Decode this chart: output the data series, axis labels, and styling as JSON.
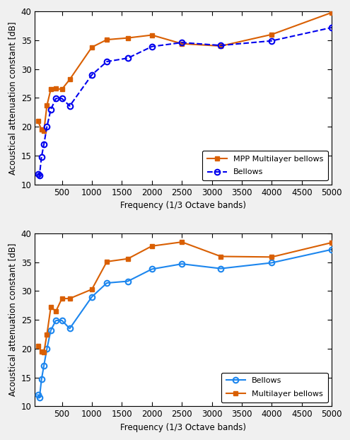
{
  "top": {
    "xlabel": "Frequency (1/3 Octave bands)",
    "ylabel": "Acoustical attenuation constant [dB]",
    "ylim": [
      10,
      40
    ],
    "xlim": [
      50,
      5000
    ],
    "xticks": [
      500,
      1000,
      1500,
      2000,
      2500,
      3000,
      3500,
      4000,
      4500,
      5000
    ],
    "yticks": [
      10,
      15,
      20,
      25,
      30,
      35,
      40
    ],
    "mpp_x": [
      100,
      160,
      200,
      250,
      315,
      400,
      500,
      630,
      1000,
      1250,
      1600,
      2000,
      2500,
      3150,
      4000,
      5000
    ],
    "mpp_y": [
      21.0,
      19.5,
      19.3,
      23.7,
      26.5,
      26.6,
      26.5,
      28.2,
      33.8,
      35.1,
      35.4,
      35.9,
      34.4,
      34.0,
      36.0,
      39.8
    ],
    "bellows_x": [
      100,
      125,
      160,
      200,
      250,
      315,
      400,
      500,
      630,
      1000,
      1250,
      1600,
      2000,
      2500,
      3150,
      4000,
      5000
    ],
    "bellows_y": [
      11.8,
      11.5,
      14.8,
      17.0,
      20.0,
      23.0,
      24.9,
      24.9,
      23.6,
      29.0,
      31.3,
      31.9,
      33.9,
      34.6,
      34.1,
      34.9,
      37.2
    ],
    "mpp_color": "#d95f02",
    "bellows_color": "#0000ee",
    "mpp_label": "MPP Multilayer bellows",
    "bellows_label": "Bellows"
  },
  "bottom": {
    "xlabel": "Frequency (1/3 Octave bands)",
    "ylabel": "Acoustical attenuation constant [dB]",
    "ylim": [
      10,
      40
    ],
    "xlim": [
      50,
      5000
    ],
    "xticks": [
      500,
      1000,
      1500,
      2000,
      2500,
      3000,
      3500,
      4000,
      4500,
      5000
    ],
    "yticks": [
      10,
      15,
      20,
      25,
      30,
      35,
      40
    ],
    "multilayer_x": [
      100,
      160,
      200,
      250,
      315,
      400,
      500,
      630,
      1000,
      1250,
      1600,
      2000,
      2500,
      3150,
      4000,
      5000
    ],
    "multilayer_y": [
      20.5,
      19.5,
      19.4,
      22.5,
      27.2,
      26.5,
      28.7,
      28.7,
      30.3,
      35.1,
      35.6,
      37.8,
      38.5,
      36.0,
      35.9,
      38.4
    ],
    "bellows_x": [
      100,
      125,
      160,
      200,
      250,
      315,
      400,
      500,
      630,
      1000,
      1250,
      1600,
      2000,
      2500,
      3150,
      4000,
      5000
    ],
    "bellows_y": [
      12.0,
      11.5,
      14.7,
      17.1,
      20.0,
      23.2,
      24.9,
      24.9,
      23.5,
      29.0,
      31.4,
      31.7,
      33.8,
      34.7,
      33.9,
      34.9,
      37.2
    ],
    "multilayer_color": "#d95f02",
    "bellows_color": "#1c86ee",
    "multilayer_label": "Multilayer bellows",
    "bellows_label": "Bellows"
  },
  "fig_bg": "#f0f0f0",
  "plot_bg": "#ffffff"
}
